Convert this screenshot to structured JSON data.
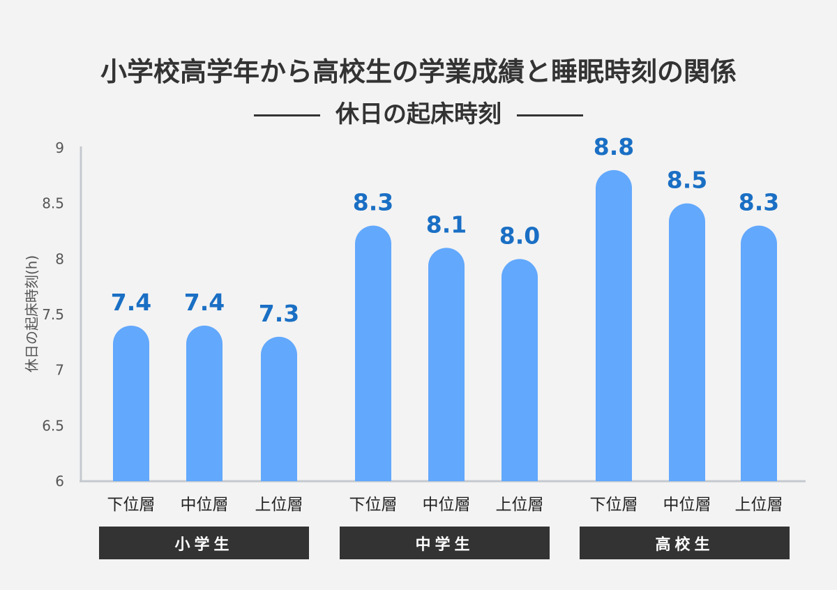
{
  "chart_data": {
    "type": "bar",
    "title": "小学校高学年から高校生の学業成績と睡眠時刻の関係",
    "subtitle": "休日の起床時刻",
    "ylabel": "休日の起床時刻(h)",
    "ylim": [
      6,
      9
    ],
    "yticks": [
      "6",
      "6.5",
      "7",
      "7.5",
      "8",
      "8.5",
      "9"
    ],
    "grid": false,
    "groups": [
      "小学生",
      "中学生",
      "高校生"
    ],
    "categories": [
      "下位層",
      "中位層",
      "上位層",
      "下位層",
      "中位層",
      "上位層",
      "下位層",
      "中位層",
      "上位層"
    ],
    "values": [
      7.4,
      7.4,
      7.3,
      8.3,
      8.1,
      8.0,
      8.8,
      8.5,
      8.3
    ],
    "data_labels": [
      "7.4",
      "7.4",
      "7.3",
      "8.3",
      "8.1",
      "8.0",
      "8.8",
      "8.5",
      "8.3"
    ],
    "colors": {
      "bar": "#62a8fd",
      "label": "#1a6fc4",
      "axis": "#c4c9cf",
      "group_box": "#333333"
    }
  }
}
